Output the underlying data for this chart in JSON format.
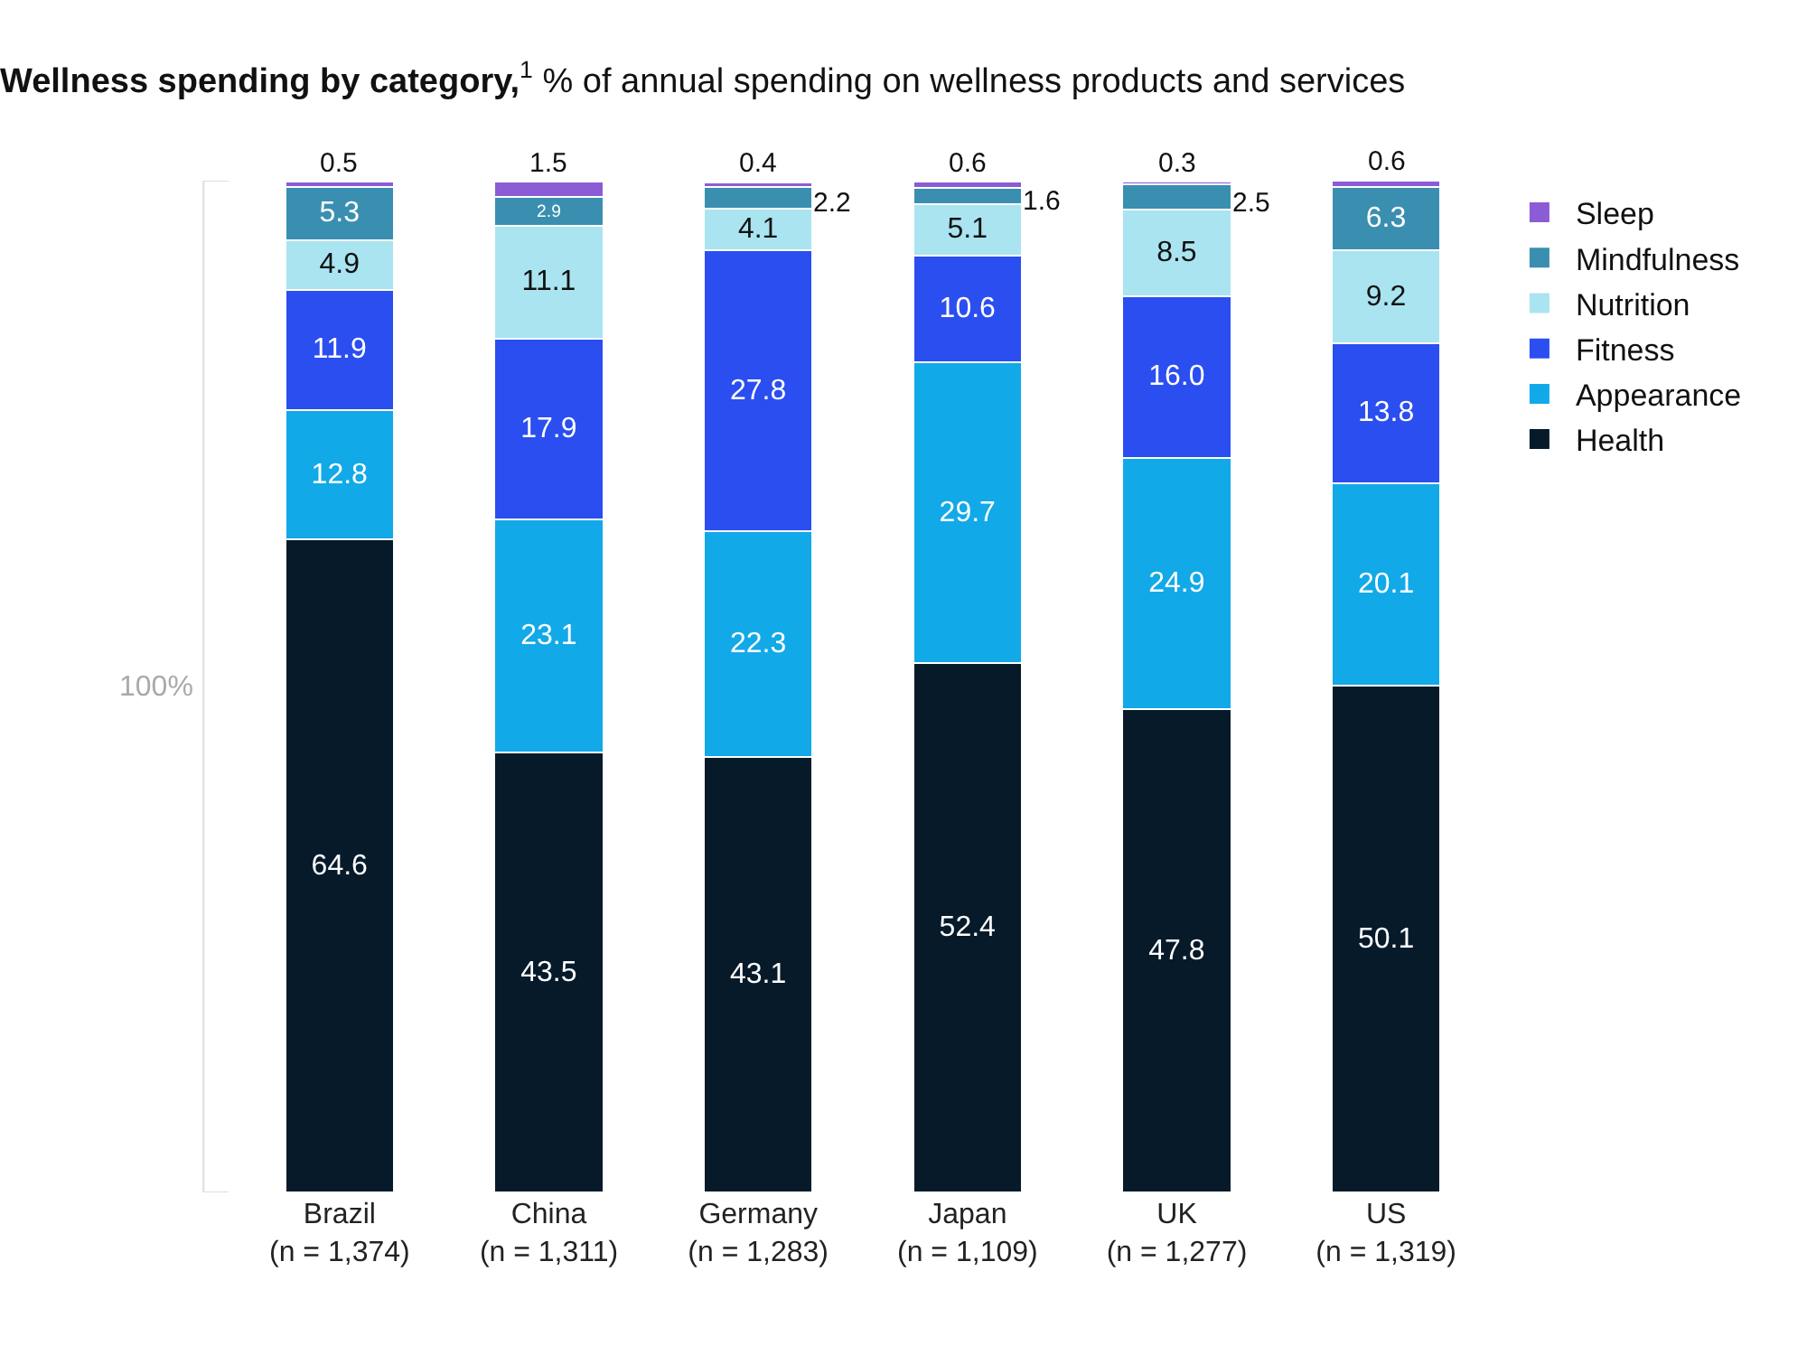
{
  "chart_data": {
    "type": "bar",
    "stacked": true,
    "title": "Wellness spending by category,$^{1}$ % of annual spending on wellness products and services",
    "categories": [
      "Brazil\n(n = 1,374)",
      "China\n(n = 1,311)",
      "Germany\n(n = 1,283)",
      "Japan\n(n = 1,109)",
      "UK\n(n = 1,277)",
      "US\n(n = 1,319)"
    ],
    "series": [
      {
        "name": "Health",
        "color": "#061a2a",
        "values": [
          64.6,
          43.5,
          43.1,
          52.4,
          47.8,
          50.1
        ]
      },
      {
        "name": "Appearance",
        "color": "#12a9e8",
        "values": [
          12.8,
          23.1,
          22.3,
          29.7,
          24.9,
          20.1
        ]
      },
      {
        "name": "Fitness",
        "color": "#2b4ef0",
        "values": [
          11.9,
          17.9,
          27.8,
          10.6,
          16.0,
          13.8
        ],
        "value_labels": [
          "11.9",
          "17.9",
          "27.8",
          "10.6",
          "16.0",
          "13.8"
        ]
      },
      {
        "name": "Nutrition",
        "color": "#a9e4f0",
        "values": [
          4.9,
          11.1,
          4.1,
          5.1,
          8.5,
          9.2
        ]
      },
      {
        "name": "Mindfulness",
        "color": "#3a8fb0",
        "values": [
          5.3,
          2.9,
          2.2,
          1.6,
          2.5,
          6.3
        ]
      },
      {
        "name": "Sleep",
        "color": "#8b5cd6",
        "values": [
          0.5,
          1.5,
          0.4,
          0.6,
          0.3,
          0.6
        ]
      }
    ],
    "data_labels": true,
    "legend": "top right",
    "annotations": [
      "100%"
    ]
  }
}
